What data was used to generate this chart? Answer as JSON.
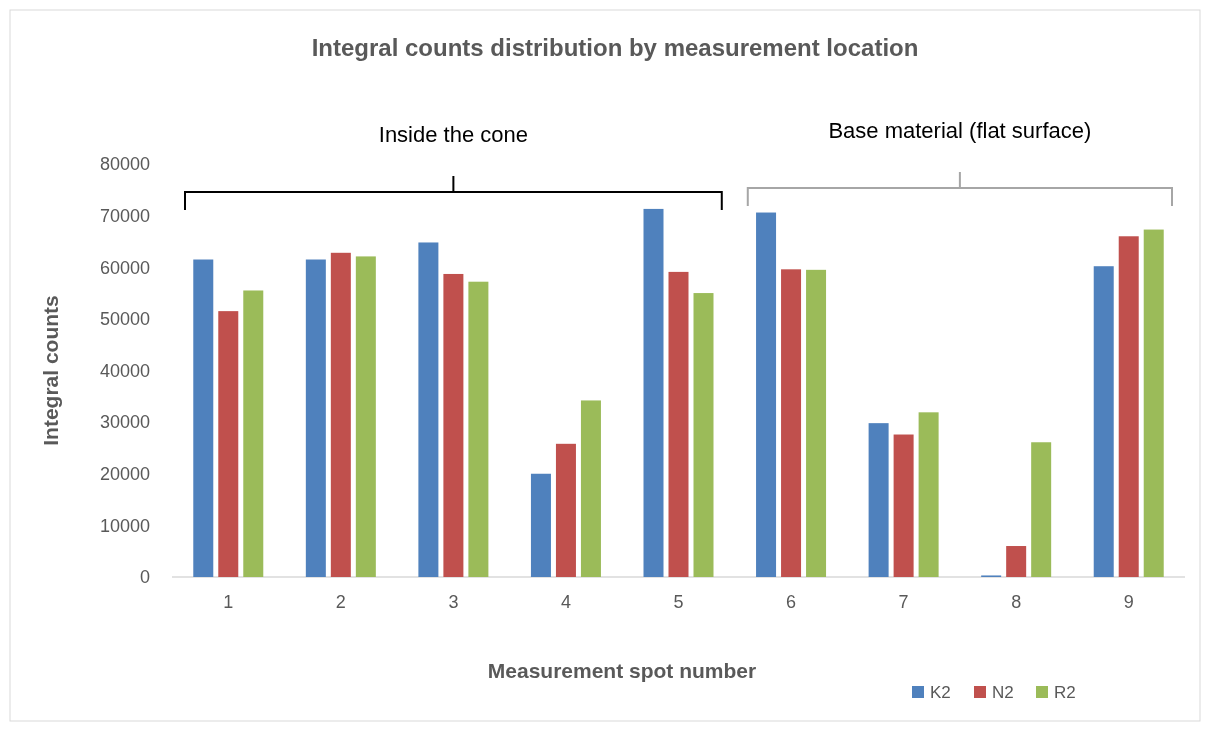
{
  "chart_data": {
    "type": "bar",
    "title": "Integral counts distribution by measurement location",
    "xlabel": "Measurement spot number",
    "ylabel": "Integral counts",
    "categories": [
      "1",
      "2",
      "3",
      "4",
      "5",
      "6",
      "7",
      "8",
      "9"
    ],
    "series": [
      {
        "name": "K2",
        "color": "#4f81bd",
        "values": [
          61500,
          61500,
          64800,
          20000,
          71300,
          70600,
          29800,
          300,
          60200
        ]
      },
      {
        "name": "N2",
        "color": "#c0504d",
        "values": [
          51500,
          62800,
          58700,
          25800,
          59100,
          59600,
          27600,
          6000,
          66000
        ]
      },
      {
        "name": "R2",
        "color": "#9bbb59",
        "values": [
          55500,
          62100,
          57200,
          34200,
          55000,
          59500,
          31900,
          26100,
          67300
        ]
      }
    ],
    "ylim": [
      0,
      80000
    ],
    "yticks": [
      0,
      10000,
      20000,
      30000,
      40000,
      50000,
      60000,
      70000,
      80000
    ],
    "annotations": [
      "Inside the cone",
      "Base material (flat surface)"
    ],
    "legend": "bottom right"
  }
}
